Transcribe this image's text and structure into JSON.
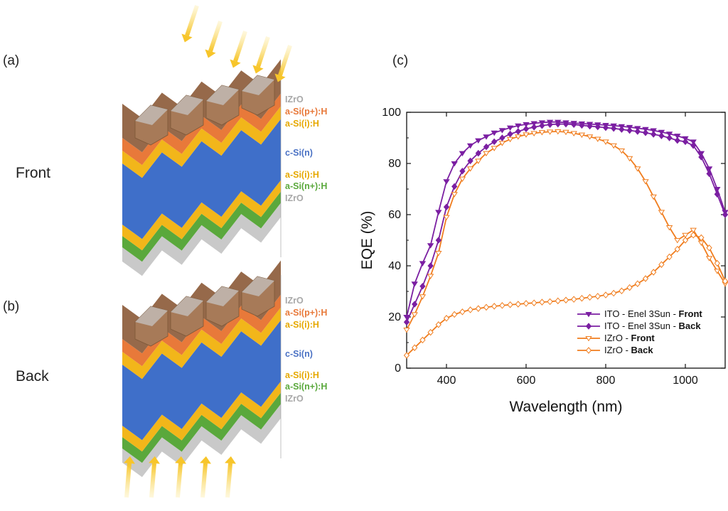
{
  "panels": {
    "a": "(a)",
    "b": "(b)",
    "c": "(c)"
  },
  "cells": [
    {
      "side": "Front",
      "illumination": "top",
      "layers": [
        {
          "label": "IZrO",
          "color": "#a8a8a8"
        },
        {
          "label": "a-Si(p+):H",
          "color": "#e8793a"
        },
        {
          "label": "a-Si(i):H",
          "color": "#f2b61a"
        },
        {
          "label": "c-Si(n)",
          "color": "#4b72c4"
        },
        {
          "label": "a-Si(i):H",
          "color": "#f2b61a"
        },
        {
          "label": "a-Si(n+):H",
          "color": "#5aa83c"
        },
        {
          "label": "IZrO",
          "color": "#a8a8a8"
        }
      ]
    },
    {
      "side": "Back",
      "illumination": "bottom",
      "layers": [
        {
          "label": "IZrO",
          "color": "#a8a8a8"
        },
        {
          "label": "a-Si(p+):H",
          "color": "#e8793a"
        },
        {
          "label": "a-Si(i):H",
          "color": "#f2b61a"
        },
        {
          "label": "c-Si(n)",
          "color": "#4b72c4"
        },
        {
          "label": "a-Si(i):H",
          "color": "#f2b61a"
        },
        {
          "label": "a-Si(n+):H",
          "color": "#5aa83c"
        },
        {
          "label": "IZrO",
          "color": "#a8a8a8"
        }
      ]
    }
  ],
  "colors": {
    "front_metal": "#96694a",
    "bulk": "#3f6fc9",
    "light_arrow": "#f7c52a",
    "purple": "#7b1fa2",
    "orange": "#f07d1e"
  },
  "chart_data": {
    "type": "line",
    "xlabel": "Wavelength (nm)",
    "ylabel": "EQE (%)",
    "xlim": [
      300,
      1100
    ],
    "ylim": [
      0,
      100
    ],
    "xticks": [
      400,
      600,
      800,
      1000
    ],
    "yticks": [
      0,
      20,
      40,
      60,
      80,
      100
    ],
    "legend_position": "bottom-right",
    "series": [
      {
        "name": "ITO - Enel 3Sun - Front",
        "name_plain": "ITO - Enel 3Sun - ",
        "name_bold": "Front",
        "color": "#7b1fa2",
        "marker": "triangle-down",
        "fill": true,
        "x": [
          300,
          320,
          340,
          360,
          380,
          400,
          420,
          440,
          460,
          480,
          500,
          520,
          540,
          560,
          580,
          600,
          620,
          640,
          660,
          680,
          700,
          720,
          740,
          760,
          780,
          800,
          820,
          840,
          860,
          880,
          900,
          920,
          940,
          960,
          980,
          1000,
          1020,
          1040,
          1060,
          1080,
          1100
        ],
        "y": [
          20,
          33,
          41,
          48,
          61,
          73,
          80,
          84,
          87,
          89,
          90.5,
          92,
          93,
          94,
          94.8,
          95.3,
          95.7,
          96,
          96.2,
          96.2,
          96,
          95.8,
          95.6,
          95.4,
          95.2,
          95,
          94.8,
          94.5,
          94.2,
          93.8,
          93.4,
          92.9,
          92.3,
          91.6,
          90.8,
          89.8,
          88.5,
          84,
          78,
          70,
          61
        ]
      },
      {
        "name": "ITO - Enel 3Sun - Back",
        "name_plain": "ITO - Enel 3Sun - ",
        "name_bold": "Back",
        "color": "#7b1fa2",
        "marker": "diamond",
        "fill": true,
        "x": [
          300,
          320,
          340,
          360,
          380,
          400,
          420,
          440,
          460,
          480,
          500,
          520,
          540,
          560,
          580,
          600,
          620,
          640,
          660,
          680,
          700,
          720,
          740,
          760,
          780,
          800,
          820,
          840,
          860,
          880,
          900,
          920,
          940,
          960,
          980,
          1000,
          1020,
          1040,
          1060,
          1080,
          1100
        ],
        "y": [
          18,
          25,
          32,
          40,
          50,
          63,
          71,
          77,
          81,
          84,
          86.5,
          88.5,
          90,
          91.5,
          92.5,
          93.5,
          94.2,
          94.8,
          95.2,
          95.4,
          95.4,
          95.2,
          94.9,
          94.6,
          94.3,
          94,
          93.7,
          93.3,
          92.9,
          92.5,
          92,
          91.4,
          90.8,
          90,
          89,
          88.5,
          87,
          82.5,
          76,
          68,
          60
        ]
      },
      {
        "name": "IZrO - Front",
        "name_plain": "IZrO - ",
        "name_bold": "Front",
        "color": "#f07d1e",
        "marker": "triangle-down",
        "fill": false,
        "x": [
          300,
          320,
          340,
          360,
          380,
          400,
          420,
          440,
          460,
          480,
          500,
          520,
          540,
          560,
          580,
          600,
          620,
          640,
          660,
          680,
          700,
          720,
          740,
          760,
          780,
          800,
          820,
          840,
          860,
          880,
          900,
          920,
          940,
          960,
          980,
          1000,
          1020,
          1040,
          1060,
          1080,
          1100
        ],
        "y": [
          15,
          21,
          28,
          36,
          45,
          59,
          68,
          74,
          78,
          81,
          84,
          86,
          88,
          89.5,
          90.5,
          91.3,
          91.8,
          92.2,
          92.4,
          92.5,
          92.3,
          91.8,
          91.2,
          90.5,
          89.6,
          88.5,
          87,
          85,
          82,
          78,
          73,
          67,
          61,
          55,
          50,
          52,
          54,
          49,
          43,
          38,
          33
        ]
      },
      {
        "name": "IZrO - Back",
        "name_plain": "IZrO - ",
        "name_bold": "Back",
        "color": "#f07d1e",
        "marker": "diamond",
        "fill": false,
        "x": [
          300,
          320,
          340,
          360,
          380,
          400,
          420,
          440,
          460,
          480,
          500,
          520,
          540,
          560,
          580,
          600,
          620,
          640,
          660,
          680,
          700,
          720,
          740,
          760,
          780,
          800,
          820,
          840,
          860,
          880,
          900,
          920,
          940,
          960,
          980,
          1000,
          1020,
          1040,
          1060,
          1080,
          1100
        ],
        "y": [
          5,
          8,
          11,
          14,
          17,
          19.5,
          21,
          22,
          22.8,
          23.3,
          23.8,
          24.2,
          24.5,
          24.8,
          25,
          25.3,
          25.5,
          25.8,
          26,
          26.3,
          26.6,
          26.9,
          27.3,
          27.7,
          28.1,
          28.6,
          29.3,
          30.2,
          31.5,
          33,
          35,
          37.5,
          40.5,
          43.5,
          46.5,
          50,
          52,
          51,
          47,
          41,
          34
        ]
      }
    ]
  }
}
